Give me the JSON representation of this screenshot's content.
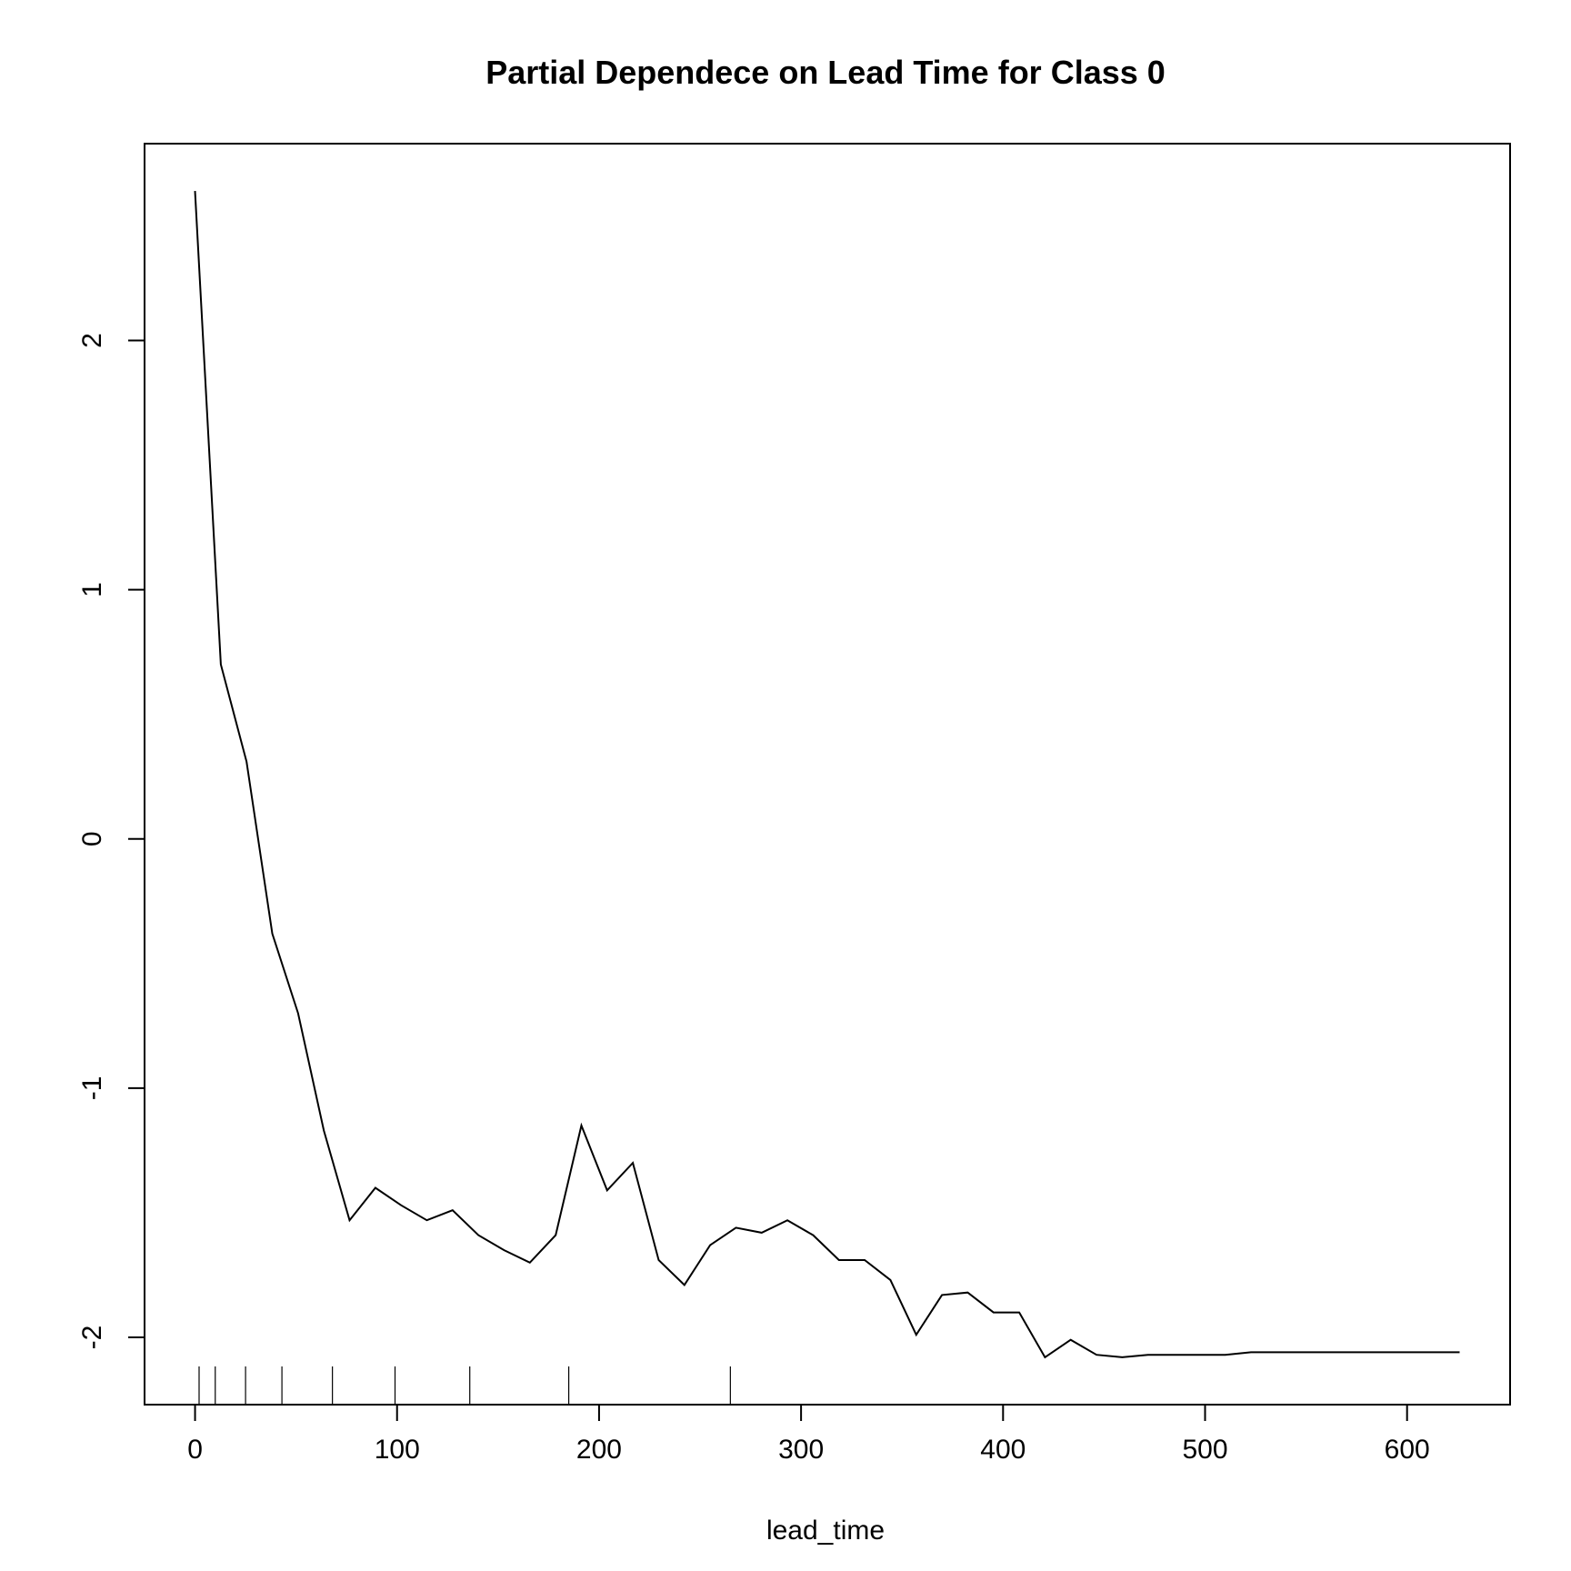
{
  "chart_data": {
    "type": "line",
    "title": "Partial Dependece on Lead Time for Class 0",
    "xlabel": "lead_time",
    "ylabel": "",
    "xlim": [
      -25,
      651
    ],
    "ylim": [
      -2.27,
      2.79
    ],
    "x_ticks": [
      {
        "value": 0,
        "label": "0"
      },
      {
        "value": 100,
        "label": "100"
      },
      {
        "value": 200,
        "label": "200"
      },
      {
        "value": 300,
        "label": "300"
      },
      {
        "value": 400,
        "label": "400"
      },
      {
        "value": 500,
        "label": "500"
      },
      {
        "value": 600,
        "label": "600"
      }
    ],
    "y_ticks": [
      {
        "value": -2,
        "label": "-2"
      },
      {
        "value": -1,
        "label": "-1"
      },
      {
        "value": 0,
        "label": "0"
      },
      {
        "value": 1,
        "label": "1"
      },
      {
        "value": 2,
        "label": "2"
      }
    ],
    "grid": false,
    "series": [
      {
        "x": [
          0,
          12.75,
          25.5,
          38.25,
          51,
          63.75,
          76.5,
          89.25,
          102,
          114.75,
          127.5,
          140.25,
          153,
          165.75,
          178.5,
          191.25,
          204,
          216.75,
          229.5,
          242.25,
          255,
          267.75,
          280.5,
          293.25,
          306,
          318.75,
          331.5,
          344.25,
          357,
          369.75,
          382.5,
          395.25,
          408,
          420.75,
          433.5,
          446.25,
          459,
          471.75,
          484.5,
          497.25,
          510,
          522.75,
          535.5,
          548.25,
          561,
          573.75,
          586.5,
          599.25,
          612,
          626
        ],
        "y": [
          2.6,
          0.7,
          0.31,
          -0.38,
          -0.7,
          -1.17,
          -1.53,
          -1.4,
          -1.47,
          -1.53,
          -1.49,
          -1.59,
          -1.65,
          -1.7,
          -1.59,
          -1.15,
          -1.41,
          -1.3,
          -1.69,
          -1.79,
          -1.63,
          -1.56,
          -1.58,
          -1.53,
          -1.59,
          -1.69,
          -1.69,
          -1.77,
          -1.99,
          -1.83,
          -1.82,
          -1.9,
          -1.9,
          -2.08,
          -2.01,
          -2.07,
          -2.08,
          -2.07,
          -2.07,
          -2.07,
          -2.07,
          -2.06,
          -2.06,
          -2.06,
          -2.06,
          -2.06,
          -2.06,
          -2.06,
          -2.06,
          -2.06
        ]
      }
    ],
    "rug_x": [
      2,
      10,
      25,
      43,
      68,
      99,
      136,
      185,
      265
    ]
  }
}
